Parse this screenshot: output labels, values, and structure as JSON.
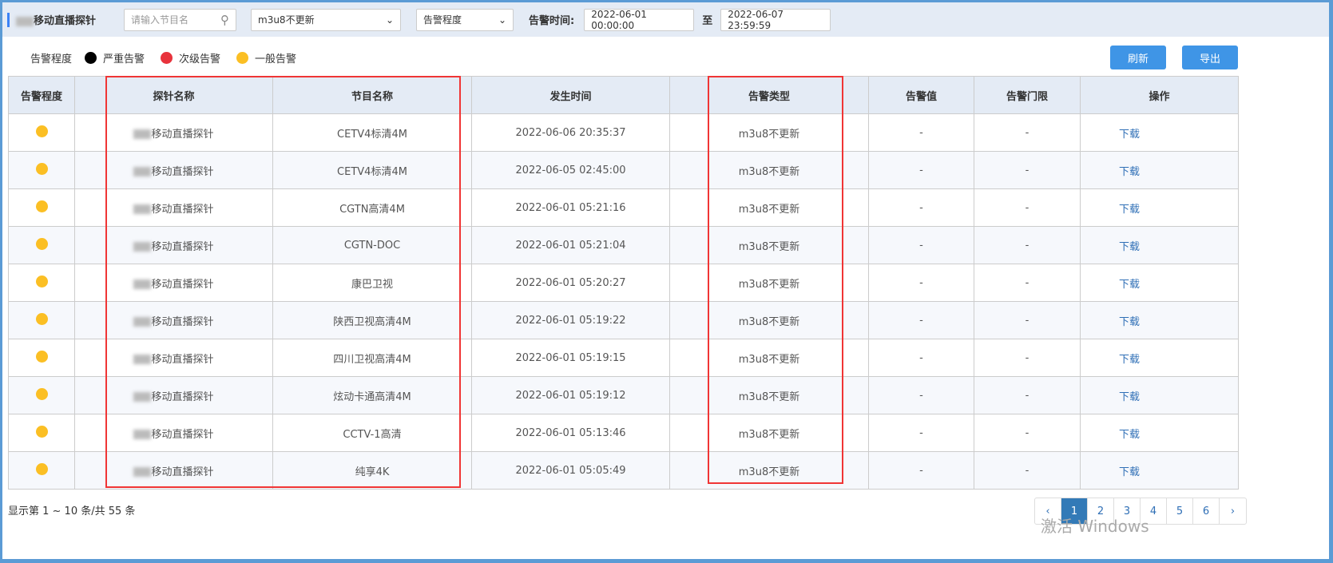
{
  "toolbar": {
    "title": "移动直播探针",
    "search_placeholder": "请输入节目名",
    "type_select": "m3u8不更新",
    "level_select": "告警程度",
    "time_label": "告警时间:",
    "start_time": "2022-06-01 00:00:00",
    "to": "至",
    "end_time": "2022-06-07 23:59:59"
  },
  "legend": {
    "label": "告警程度",
    "items": [
      {
        "label": "严重告警",
        "color": "#000000"
      },
      {
        "label": "次级告警",
        "color": "#e8333c"
      },
      {
        "label": "一般告警",
        "color": "#fbbf24"
      }
    ]
  },
  "buttons": {
    "refresh": "刷新",
    "export": "导出"
  },
  "table": {
    "headers": [
      "告警程度",
      "探针名称",
      "节目名称",
      "发生时间",
      "告警类型",
      "告警值",
      "告警门限",
      "操作"
    ],
    "rows": [
      {
        "probe": "移动直播探针",
        "program": "CETV4标清4M",
        "time": "2022-06-06 20:35:37",
        "type": "m3u8不更新",
        "value": "-",
        "limit": "-",
        "action": "下载"
      },
      {
        "probe": "移动直播探针",
        "program": "CETV4标清4M",
        "time": "2022-06-05 02:45:00",
        "type": "m3u8不更新",
        "value": "-",
        "limit": "-",
        "action": "下载"
      },
      {
        "probe": "移动直播探针",
        "program": "CGTN高清4M",
        "time": "2022-06-01 05:21:16",
        "type": "m3u8不更新",
        "value": "-",
        "limit": "-",
        "action": "下载"
      },
      {
        "probe": "移动直播探针",
        "program": "CGTN-DOC",
        "time": "2022-06-01 05:21:04",
        "type": "m3u8不更新",
        "value": "-",
        "limit": "-",
        "action": "下载"
      },
      {
        "probe": "移动直播探针",
        "program": "康巴卫视",
        "time": "2022-06-01 05:20:27",
        "type": "m3u8不更新",
        "value": "-",
        "limit": "-",
        "action": "下载"
      },
      {
        "probe": "移动直播探针",
        "program": "陕西卫视高清4M",
        "time": "2022-06-01 05:19:22",
        "type": "m3u8不更新",
        "value": "-",
        "limit": "-",
        "action": "下载"
      },
      {
        "probe": "移动直播探针",
        "program": "四川卫视高清4M",
        "time": "2022-06-01 05:19:15",
        "type": "m3u8不更新",
        "value": "-",
        "limit": "-",
        "action": "下载"
      },
      {
        "probe": "移动直播探针",
        "program": "炫动卡通高清4M",
        "time": "2022-06-01 05:19:12",
        "type": "m3u8不更新",
        "value": "-",
        "limit": "-",
        "action": "下载"
      },
      {
        "probe": "移动直播探针",
        "program": "CCTV-1高清",
        "time": "2022-06-01 05:13:46",
        "type": "m3u8不更新",
        "value": "-",
        "limit": "-",
        "action": "下载"
      },
      {
        "probe": "移动直播探针",
        "program": "纯享4K",
        "time": "2022-06-01 05:05:49",
        "type": "m3u8不更新",
        "value": "-",
        "limit": "-",
        "action": "下载"
      }
    ]
  },
  "footer": {
    "status": "显示第 1 ~ 10 条/共 55 条",
    "pages": [
      "‹",
      "1",
      "2",
      "3",
      "4",
      "5",
      "6",
      "›"
    ],
    "current_page": "1"
  },
  "watermark": "激活 Windows"
}
